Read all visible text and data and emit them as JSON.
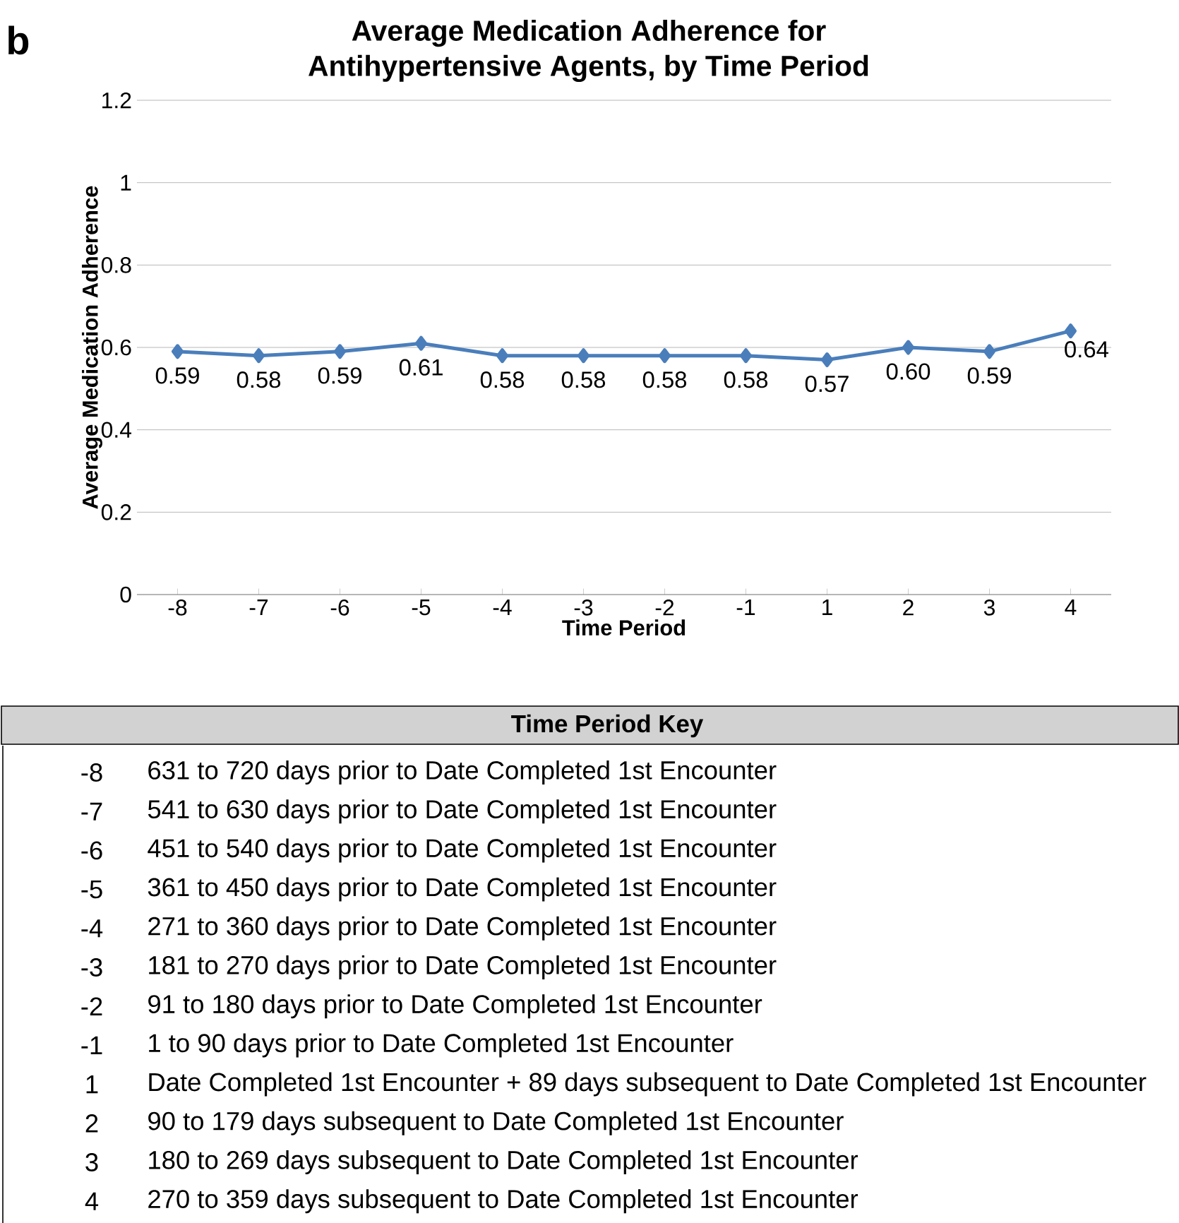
{
  "chart_data": {
    "type": "line",
    "title": "Average Medication Adherence for\nAntihypertensive Agents, by Time Period",
    "xlabel": "Time Period",
    "ylabel": "Average Medication Adherence",
    "categories": [
      "-8",
      "-7",
      "-6",
      "-5",
      "-4",
      "-3",
      "-2",
      "-1",
      "1",
      "2",
      "3",
      "4"
    ],
    "series": [
      {
        "color": "#4a7ebb",
        "values": [
          0.59,
          0.58,
          0.59,
          0.61,
          0.58,
          0.58,
          0.58,
          0.58,
          0.57,
          0.6,
          0.59,
          0.64
        ],
        "value_labels": [
          "0.59",
          "0.58",
          "0.59",
          "0.61",
          "0.58",
          "0.58",
          "0.58",
          "0.58",
          "0.57",
          "0.60",
          "0.59",
          "0.64"
        ]
      }
    ],
    "ylim": [
      0,
      1.2
    ],
    "yticks": [
      0,
      0.2,
      0.4,
      0.6,
      0.8,
      1,
      1.2
    ],
    "grid": "y",
    "marker": "diamond",
    "line_style": "solid",
    "annotations": [
      "b",
      "Time Period Key",
      "-8",
      "631 to 720 days prior to Date Completed 1st Encounter",
      "-7",
      "541 to 630 days prior to Date Completed 1st Encounter",
      "-6",
      "451 to 540 days prior to Date Completed 1st Encounter",
      "-5",
      "361 to 450 days prior to Date Completed 1st Encounter",
      "-4",
      "271 to 360 days prior to Date Completed 1st Encounter",
      "-3",
      "181 to 270 days prior to Date Completed 1st Encounter",
      "-2",
      "91 to 180 days prior to Date Completed 1st Encounter",
      "-1",
      "1 to 90 days prior to Date Completed 1st Encounter",
      "1",
      "Date Completed 1st Encounter + 89 days subsequent to Date Completed 1st Encounter",
      "2",
      "90 to 179 days subsequent to Date Completed 1st Encounter",
      "3",
      "180 to 269 days subsequent to Date Completed 1st Encounter",
      "4",
      "270 to 359 days subsequent to Date Completed 1st Encounter"
    ]
  }
}
